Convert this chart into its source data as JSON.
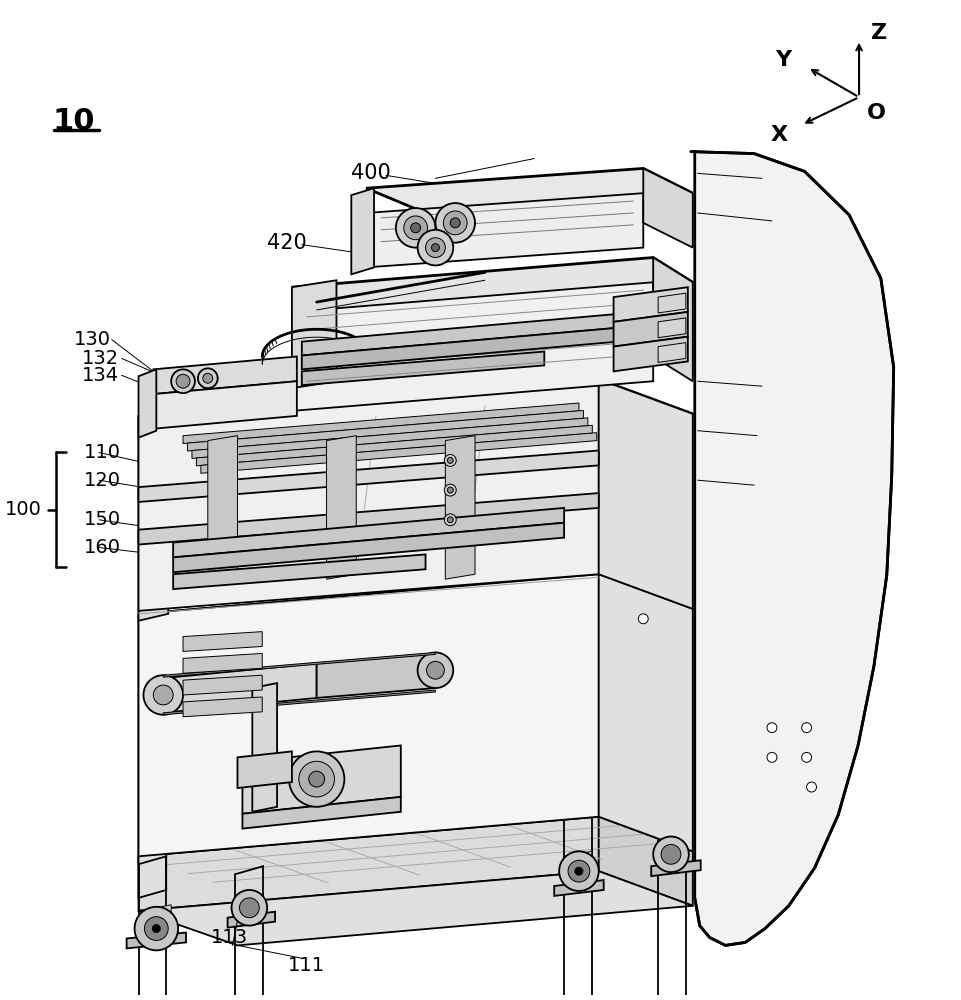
{
  "background_color": "#ffffff",
  "line_color": "#000000",
  "label_10": "10",
  "label_100": "100",
  "label_110": "110",
  "label_111": "111",
  "label_113": "113",
  "label_120": "120",
  "label_130": "130",
  "label_132": "132",
  "label_134": "134",
  "label_150": "150",
  "label_160": "160",
  "label_400": "400",
  "label_420": "420",
  "axis_X": "X",
  "axis_Y": "Y",
  "axis_Z": "Z",
  "axis_O": "O",
  "figwidth": 9.61,
  "figheight": 10.0,
  "dpi": 100,
  "lw_main": 1.3,
  "lw_thin": 0.7,
  "lw_thick": 2.0,
  "gray_light": "#e8e8e8",
  "gray_mid": "#cccccc",
  "gray_dark": "#999999",
  "gray_fill": "#f0f0f0"
}
